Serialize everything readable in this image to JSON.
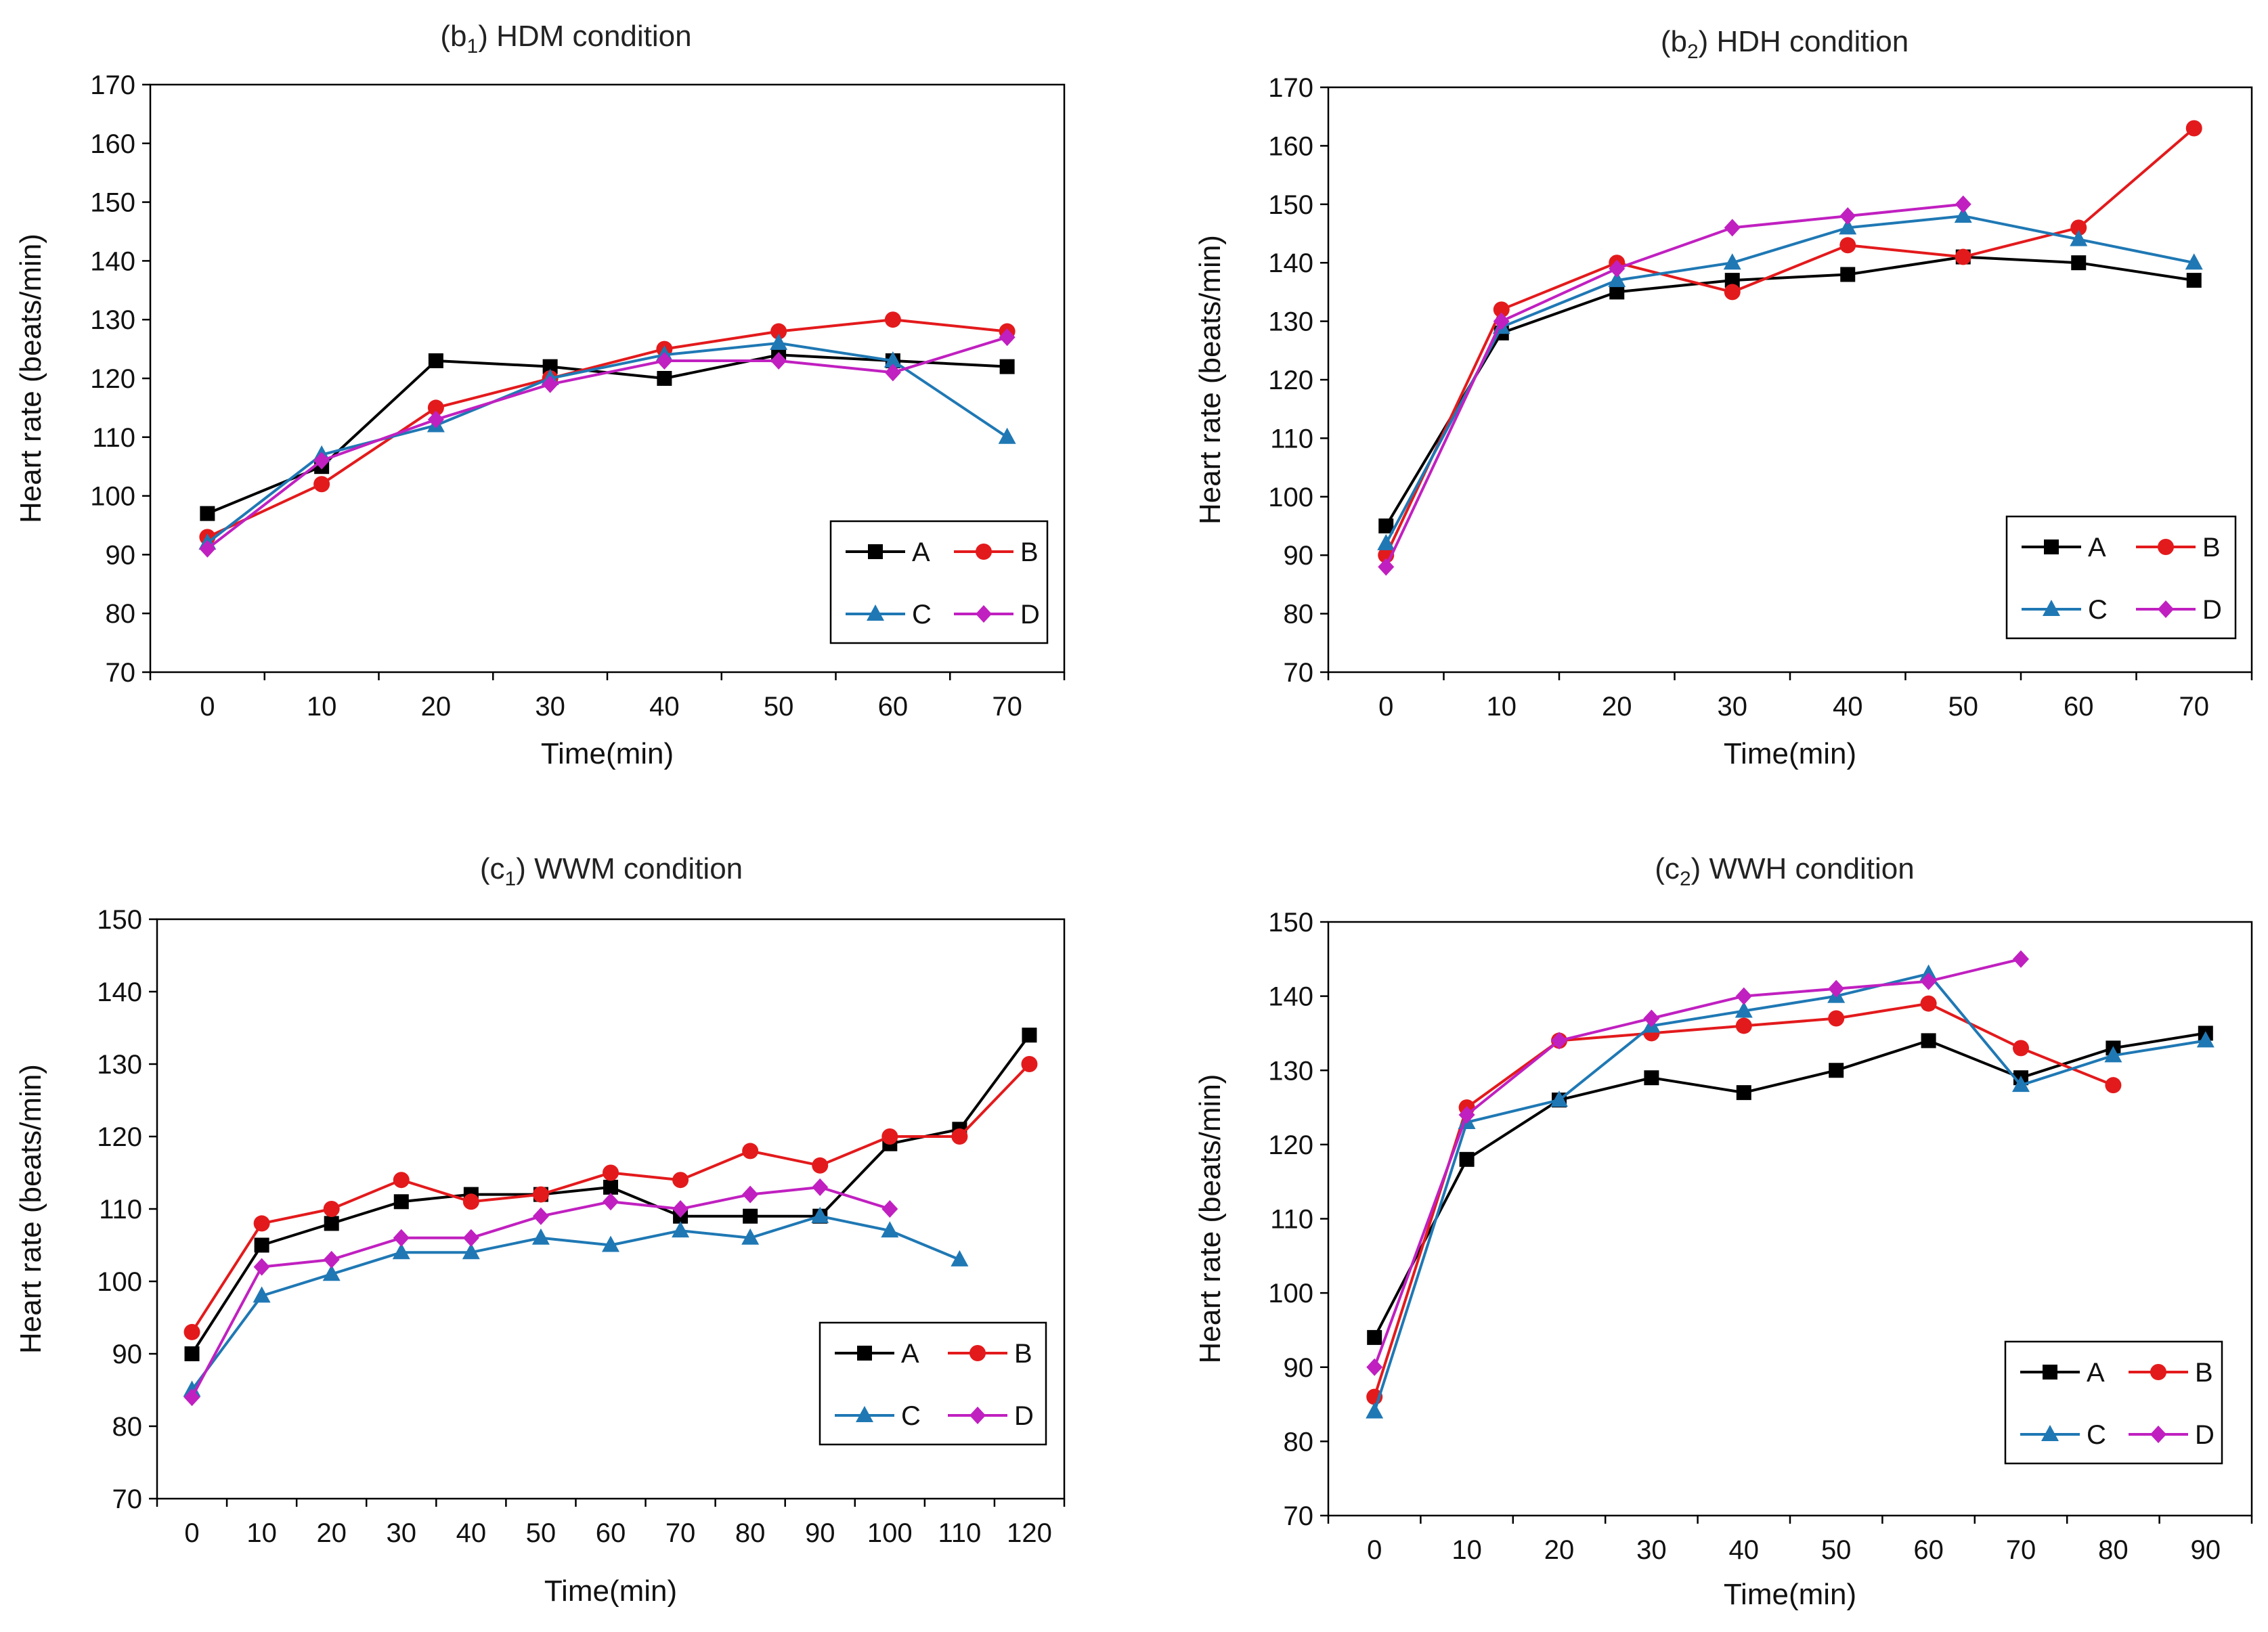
{
  "figure": {
    "series_names": [
      "A",
      "B",
      "C",
      "D"
    ],
    "series_colors": {
      "A": "#000000",
      "B": "#e31a1c",
      "C": "#1f78b4",
      "D": "#c020c0"
    },
    "series_markers": {
      "A": "square",
      "B": "circle",
      "C": "triangle",
      "D": "diamond"
    }
  },
  "chart_data": [
    {
      "type": "line",
      "title_prefix": "(b",
      "title_sub": "1",
      "title_suffix": ") HDM condition",
      "xlabel": "Time(min)",
      "ylabel": "Heart rate (beats/min)",
      "ylim": [
        70,
        170
      ],
      "yticks": [
        70,
        80,
        90,
        100,
        110,
        120,
        130,
        140,
        150,
        160,
        170
      ],
      "xticks": [
        0,
        10,
        20,
        30,
        40,
        50,
        60,
        70
      ],
      "legend_position": "bottom-right",
      "series": [
        {
          "name": "A",
          "x": [
            0,
            10,
            20,
            30,
            40,
            50,
            60,
            70
          ],
          "values": [
            97,
            105,
            123,
            122,
            120,
            124,
            123,
            122
          ]
        },
        {
          "name": "B",
          "x": [
            0,
            10,
            20,
            30,
            40,
            50,
            60,
            70
          ],
          "values": [
            93,
            102,
            115,
            120,
            125,
            128,
            130,
            128
          ]
        },
        {
          "name": "C",
          "x": [
            0,
            10,
            20,
            30,
            40,
            50,
            60,
            70
          ],
          "values": [
            92,
            107,
            112,
            120,
            124,
            126,
            123,
            110
          ]
        },
        {
          "name": "D",
          "x": [
            0,
            10,
            20,
            30,
            40,
            50,
            60,
            70
          ],
          "values": [
            91,
            106,
            113,
            119,
            123,
            123,
            121,
            127
          ]
        }
      ]
    },
    {
      "type": "line",
      "title_prefix": "(b",
      "title_sub": "2",
      "title_suffix": ") HDH condition",
      "xlabel": "Time(min)",
      "ylabel": "Heart rate (beats/min)",
      "ylim": [
        70,
        170
      ],
      "yticks": [
        70,
        80,
        90,
        100,
        110,
        120,
        130,
        140,
        150,
        160,
        170
      ],
      "xticks": [
        0,
        10,
        20,
        30,
        40,
        50,
        60,
        70
      ],
      "legend_position": "bottom-right",
      "series": [
        {
          "name": "A",
          "x": [
            0,
            10,
            20,
            30,
            40,
            50,
            60,
            70
          ],
          "values": [
            95,
            128,
            135,
            137,
            138,
            141,
            140,
            137
          ]
        },
        {
          "name": "B",
          "x": [
            0,
            10,
            20,
            30,
            40,
            50,
            60,
            70
          ],
          "values": [
            90,
            132,
            140,
            135,
            143,
            141,
            146,
            163
          ]
        },
        {
          "name": "C",
          "x": [
            0,
            10,
            20,
            30,
            40,
            50,
            60,
            70
          ],
          "values": [
            92,
            129,
            137,
            140,
            146,
            148,
            144,
            140
          ]
        },
        {
          "name": "D",
          "x": [
            0,
            10,
            20,
            30,
            40,
            50
          ],
          "values": [
            88,
            130,
            139,
            146,
            148,
            150
          ]
        }
      ]
    },
    {
      "type": "line",
      "title_prefix": "(c",
      "title_sub": "1",
      "title_suffix": ") WWM condition",
      "xlabel": "Time(min)",
      "ylabel": "Heart rate (beats/min)",
      "ylim": [
        70,
        150
      ],
      "yticks": [
        70,
        80,
        90,
        100,
        110,
        120,
        130,
        140,
        150
      ],
      "xticks": [
        0,
        10,
        20,
        30,
        40,
        50,
        60,
        70,
        80,
        90,
        100,
        110,
        120
      ],
      "legend_position": "bottom-right",
      "series": [
        {
          "name": "A",
          "x": [
            0,
            10,
            20,
            30,
            40,
            50,
            60,
            70,
            80,
            90,
            100,
            110,
            120
          ],
          "values": [
            90,
            105,
            108,
            111,
            112,
            112,
            113,
            109,
            109,
            109,
            119,
            121,
            134
          ]
        },
        {
          "name": "B",
          "x": [
            0,
            10,
            20,
            30,
            40,
            50,
            60,
            70,
            80,
            90,
            100,
            110,
            120
          ],
          "values": [
            93,
            108,
            110,
            114,
            111,
            112,
            115,
            114,
            118,
            116,
            120,
            120,
            130
          ]
        },
        {
          "name": "C",
          "x": [
            0,
            10,
            20,
            30,
            40,
            50,
            60,
            70,
            80,
            90,
            100,
            110
          ],
          "values": [
            85,
            98,
            101,
            104,
            104,
            106,
            105,
            107,
            106,
            109,
            107,
            103
          ]
        },
        {
          "name": "D",
          "x": [
            0,
            10,
            20,
            30,
            40,
            50,
            60,
            70,
            80,
            90,
            100
          ],
          "values": [
            84,
            102,
            103,
            106,
            106,
            109,
            111,
            110,
            112,
            113,
            110
          ]
        }
      ]
    },
    {
      "type": "line",
      "title_prefix": "(c",
      "title_sub": "2",
      "title_suffix": ") WWH condition",
      "xlabel": "Time(min)",
      "ylabel": "Heart rate (beats/min)",
      "ylim": [
        70,
        150
      ],
      "yticks": [
        70,
        80,
        90,
        100,
        110,
        120,
        130,
        140,
        150
      ],
      "xticks": [
        0,
        10,
        20,
        30,
        40,
        50,
        60,
        70,
        80,
        90
      ],
      "legend_position": "bottom-right",
      "series": [
        {
          "name": "A",
          "x": [
            0,
            10,
            20,
            30,
            40,
            50,
            60,
            70,
            80,
            90
          ],
          "values": [
            94,
            118,
            126,
            129,
            127,
            130,
            134,
            129,
            133,
            135
          ]
        },
        {
          "name": "B",
          "x": [
            0,
            10,
            20,
            30,
            40,
            50,
            60,
            70,
            80
          ],
          "values": [
            86,
            125,
            134,
            135,
            136,
            137,
            139,
            133,
            128
          ]
        },
        {
          "name": "C",
          "x": [
            0,
            10,
            20,
            30,
            40,
            50,
            60,
            70,
            80,
            90
          ],
          "values": [
            84,
            123,
            126,
            136,
            138,
            140,
            143,
            128,
            132,
            134
          ]
        },
        {
          "name": "D",
          "x": [
            0,
            10,
            20,
            30,
            40,
            50,
            60,
            70
          ],
          "values": [
            90,
            124,
            134,
            137,
            140,
            141,
            142,
            145
          ]
        }
      ]
    }
  ]
}
